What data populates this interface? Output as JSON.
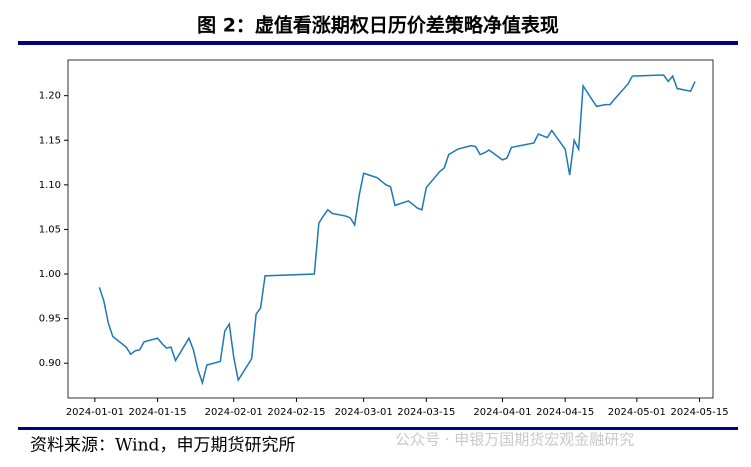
{
  "chart_data": {
    "type": "line",
    "title": "图 2：虚值看涨期权日历价差策略净值表现",
    "source": "资料来源：Wind，申万期货研究所",
    "watermark": "公众号 · 申银万国期货宏观金融研究",
    "x": [
      "2024-01-02",
      "2024-01-03",
      "2024-01-04",
      "2024-01-05",
      "2024-01-08",
      "2024-01-09",
      "2024-01-10",
      "2024-01-11",
      "2024-01-12",
      "2024-01-15",
      "2024-01-16",
      "2024-01-17",
      "2024-01-18",
      "2024-01-19",
      "2024-01-22",
      "2024-01-23",
      "2024-01-24",
      "2024-01-25",
      "2024-01-26",
      "2024-01-29",
      "2024-01-30",
      "2024-01-31",
      "2024-02-01",
      "2024-02-02",
      "2024-02-05",
      "2024-02-06",
      "2024-02-07",
      "2024-02-08",
      "2024-02-19",
      "2024-02-20",
      "2024-02-21",
      "2024-02-22",
      "2024-02-23",
      "2024-02-26",
      "2024-02-27",
      "2024-02-28",
      "2024-02-29",
      "2024-03-01",
      "2024-03-04",
      "2024-03-05",
      "2024-03-06",
      "2024-03-07",
      "2024-03-08",
      "2024-03-11",
      "2024-03-12",
      "2024-03-13",
      "2024-03-14",
      "2024-03-15",
      "2024-03-18",
      "2024-03-19",
      "2024-03-20",
      "2024-03-21",
      "2024-03-22",
      "2024-03-25",
      "2024-03-26",
      "2024-03-27",
      "2024-03-28",
      "2024-03-29",
      "2024-04-01",
      "2024-04-02",
      "2024-04-03",
      "2024-04-08",
      "2024-04-09",
      "2024-04-10",
      "2024-04-11",
      "2024-04-12",
      "2024-04-15",
      "2024-04-16",
      "2024-04-17",
      "2024-04-18",
      "2024-04-19",
      "2024-04-22",
      "2024-04-23",
      "2024-04-24",
      "2024-04-25",
      "2024-04-26",
      "2024-04-29",
      "2024-04-30",
      "2024-05-06",
      "2024-05-07",
      "2024-05-08",
      "2024-05-09",
      "2024-05-10",
      "2024-05-13",
      "2024-05-14"
    ],
    "series": [
      {
        "name": "净值",
        "color": "#1f77b4",
        "values": [
          0.985,
          0.97,
          0.945,
          0.93,
          0.918,
          0.91,
          0.914,
          0.915,
          0.924,
          0.928,
          0.922,
          0.917,
          0.918,
          0.903,
          0.928,
          0.915,
          0.893,
          0.878,
          0.898,
          0.902,
          0.936,
          0.944,
          0.907,
          0.881,
          0.905,
          0.955,
          0.962,
          0.998,
          1.0,
          1.057,
          1.065,
          1.072,
          1.068,
          1.065,
          1.063,
          1.055,
          1.088,
          1.113,
          1.108,
          1.104,
          1.1,
          1.098,
          1.077,
          1.082,
          1.078,
          1.074,
          1.072,
          1.097,
          1.115,
          1.119,
          1.134,
          1.137,
          1.14,
          1.144,
          1.143,
          1.134,
          1.136,
          1.139,
          1.128,
          1.13,
          1.142,
          1.147,
          1.157,
          1.155,
          1.153,
          1.161,
          1.14,
          1.111,
          1.15,
          1.14,
          1.211,
          1.188,
          1.189,
          1.19,
          1.19,
          1.196,
          1.213,
          1.222,
          1.223,
          1.223,
          1.216,
          1.222,
          1.208,
          1.205,
          1.216
        ]
      }
    ],
    "xlim": [
      "2023-12-26",
      "2024-05-18"
    ],
    "xticks": [
      "2024-01-01",
      "2024-01-15",
      "2024-02-01",
      "2024-02-15",
      "2024-03-01",
      "2024-03-15",
      "2024-04-01",
      "2024-04-15",
      "2024-05-01",
      "2024-05-15"
    ],
    "ylim": [
      0.861,
      1.24
    ],
    "yticks": [
      {
        "value": 0.9,
        "label": "0.90"
      },
      {
        "value": 0.95,
        "label": "0.95"
      },
      {
        "value": 1.0,
        "label": "1.00"
      },
      {
        "value": 1.05,
        "label": "1.05"
      },
      {
        "value": 1.1,
        "label": "1.10"
      },
      {
        "value": 1.15,
        "label": "1.15"
      },
      {
        "value": 1.2,
        "label": "1.20"
      }
    ],
    "grid": false
  }
}
